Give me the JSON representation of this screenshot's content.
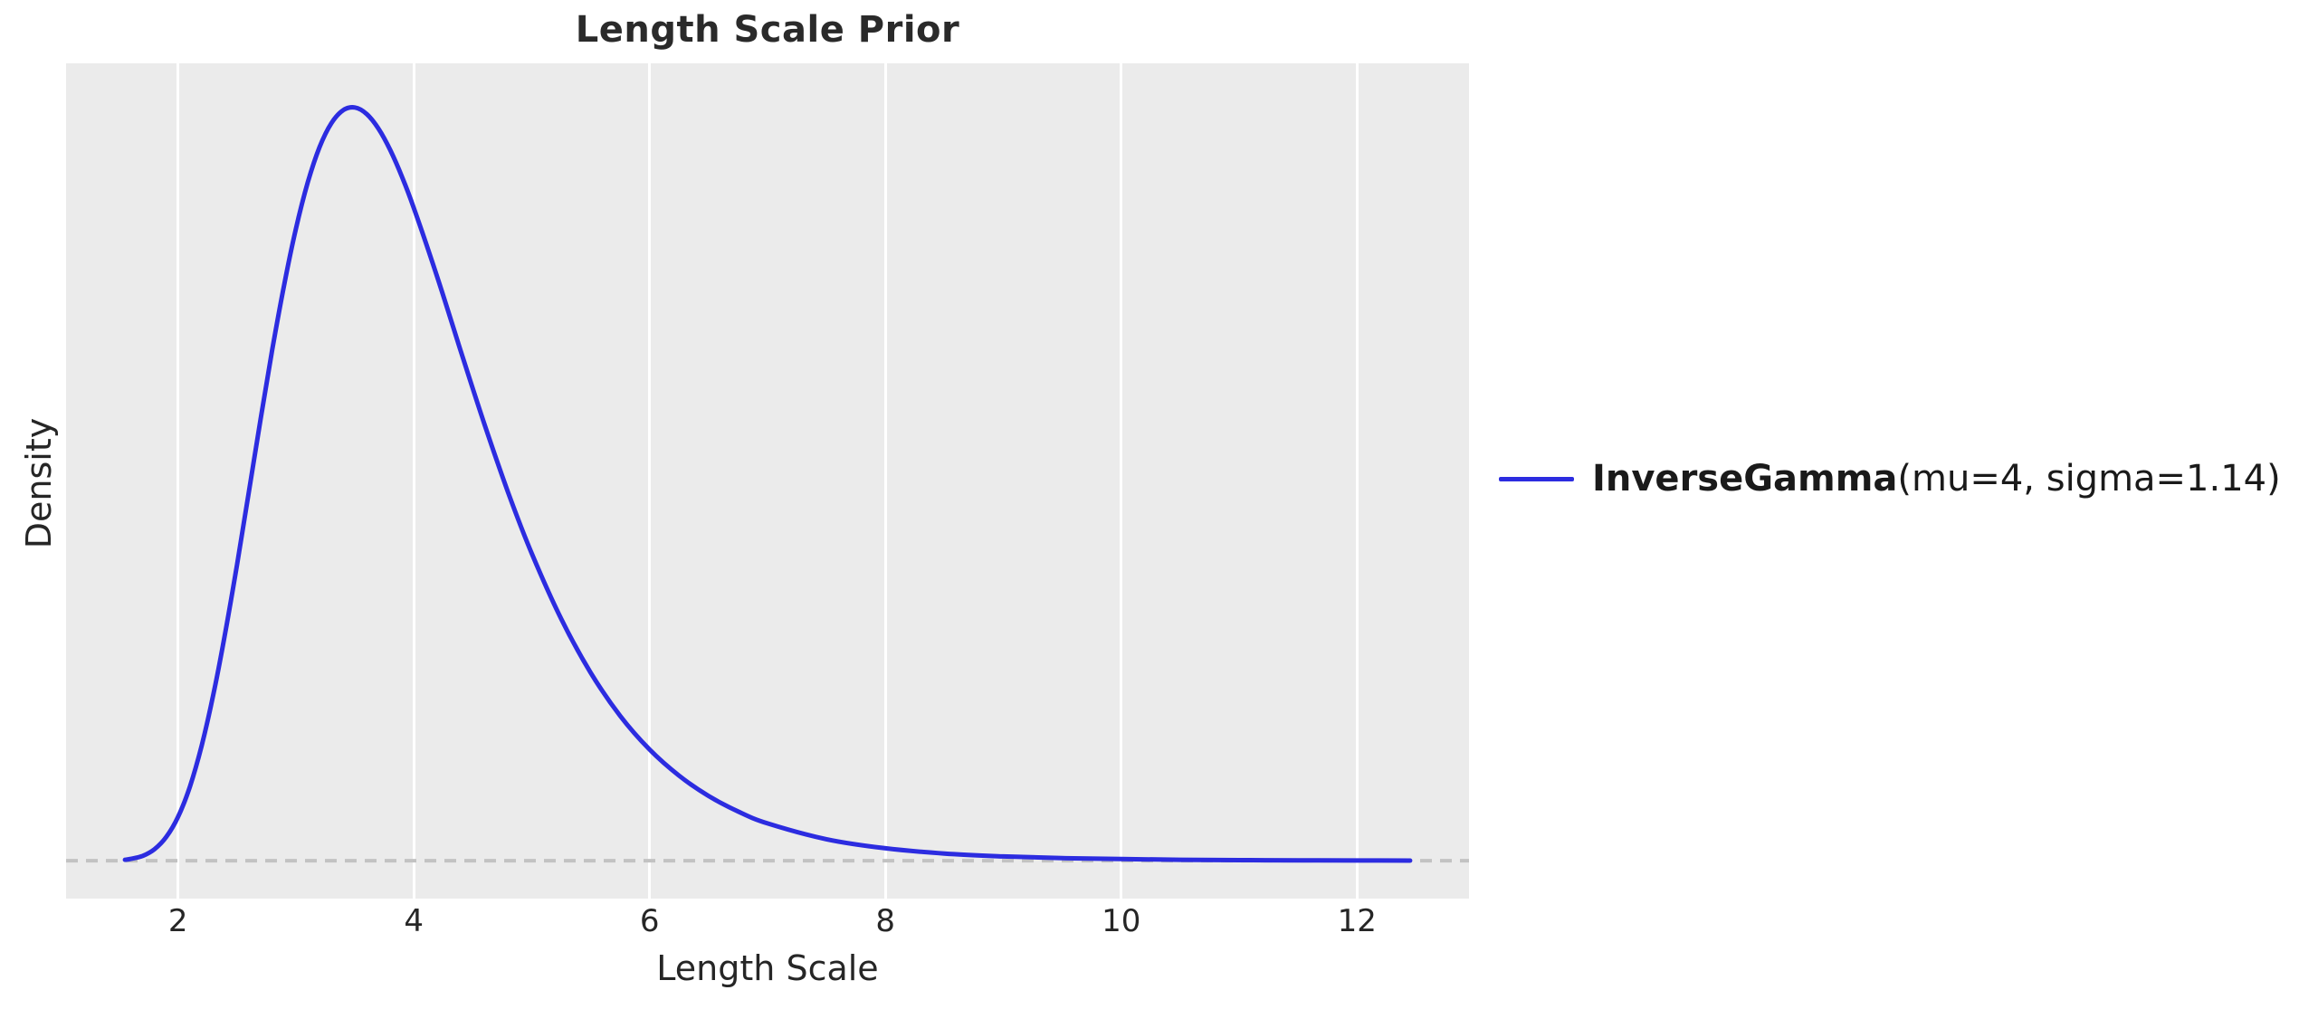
{
  "figure": {
    "title": "Length Scale Prior",
    "xlabel": "Length Scale",
    "ylabel": "Density"
  },
  "legend": {
    "series_bold": "InverseGamma",
    "series_rest": "(mu=4, sigma=1.14)"
  },
  "colors": {
    "page_background": "#ffffff",
    "plot_background": "#ebebeb",
    "gridline": "#ffffff",
    "curve": "#2c2ce0",
    "zero_line": "#c2c2c2",
    "text": "#262626"
  },
  "chart_data": {
    "type": "line",
    "title": "Length Scale Prior",
    "xlabel": "Length Scale",
    "ylabel": "Density",
    "x_ticks": [
      2,
      4,
      6,
      8,
      10,
      12
    ],
    "y_ticks": [],
    "xlim": [
      1.05,
      12.95
    ],
    "ylim": [
      -0.021,
      0.442
    ],
    "grid": "vertical-only",
    "legend_position": "outside-center-right",
    "zero_line": {
      "y": 0,
      "style": "dashed",
      "color": "#c2c2c2"
    },
    "series": [
      {
        "name": "InverseGamma(mu=4, sigma=1.14)",
        "distribution": "InverseGamma",
        "params": {
          "mu": 4,
          "sigma": 1.14
        },
        "color": "#2c2ce0",
        "peak": {
          "x": 3.5,
          "density": 0.4175
        },
        "x": [
          1.55,
          1.6,
          1.7,
          1.8,
          1.9,
          2.0,
          2.1,
          2.2,
          2.3,
          2.4,
          2.5,
          2.6,
          2.7,
          2.8,
          2.9,
          3.0,
          3.1,
          3.2,
          3.3,
          3.4,
          3.5,
          3.6,
          3.7,
          3.8,
          3.9,
          4.0,
          4.2,
          4.4,
          4.6,
          4.8,
          5.0,
          5.25,
          5.5,
          5.75,
          6.0,
          6.25,
          6.5,
          6.75,
          7.0,
          7.5,
          8.0,
          8.5,
          9.0,
          9.5,
          10.0,
          10.5,
          11.0,
          11.5,
          12.0,
          12.45
        ],
        "y": [
          0.0005,
          0.001,
          0.0027,
          0.0064,
          0.0132,
          0.0243,
          0.041,
          0.0637,
          0.0924,
          0.1263,
          0.1641,
          0.2043,
          0.2447,
          0.2837,
          0.3193,
          0.3504,
          0.376,
          0.3955,
          0.4088,
          0.416,
          0.4175,
          0.4139,
          0.4058,
          0.3939,
          0.379,
          0.3618,
          0.3232,
          0.2821,
          0.2417,
          0.2041,
          0.1703,
          0.134,
          0.1042,
          0.0803,
          0.0616,
          0.0471,
          0.0359,
          0.0273,
          0.0207,
          0.0119,
          0.0069,
          0.004,
          0.0024,
          0.0014,
          0.0009,
          0.0005,
          0.0003,
          0.0002,
          0.00013,
          8e-05
        ]
      }
    ]
  }
}
